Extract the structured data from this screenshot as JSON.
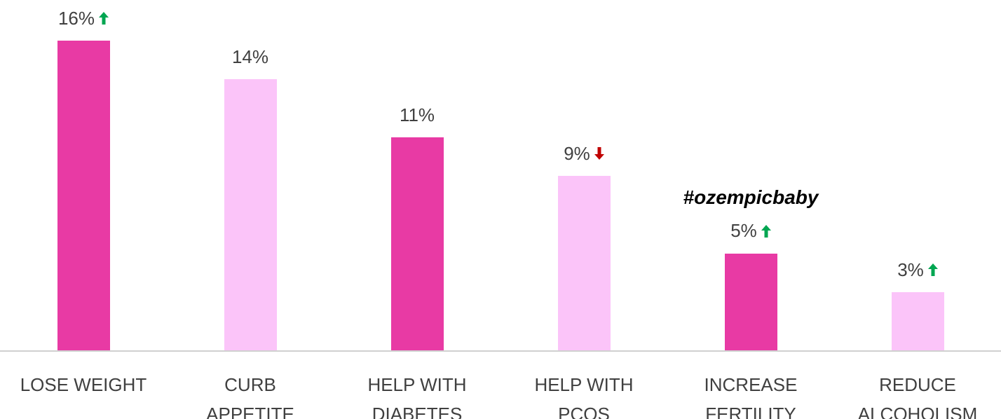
{
  "chart_data": {
    "type": "bar",
    "categories": [
      "LOSE WEIGHT",
      "CURB APPETITE",
      "HELP WITH DIABETES",
      "HELP WITH PCOS",
      "INCREASE FERTILITY",
      "REDUCE ALCOHOLISM"
    ],
    "values": [
      16,
      14,
      11,
      9,
      5,
      3
    ],
    "value_labels": [
      "16%",
      "14%",
      "11%",
      "9%",
      "5%",
      "3%"
    ],
    "colors": [
      "#e83aa4",
      "#fbc4f9",
      "#e83aa4",
      "#fbc4f9",
      "#e83aa4",
      "#fbc4f9"
    ],
    "trend": [
      "up",
      null,
      null,
      "down",
      "up",
      "up"
    ],
    "trend_colors": {
      "up": "#00a651",
      "down": "#c00000"
    },
    "annotations": [
      {
        "text": "#ozempicbaby",
        "category": 4
      }
    ],
    "ylim": [
      0,
      16
    ]
  }
}
